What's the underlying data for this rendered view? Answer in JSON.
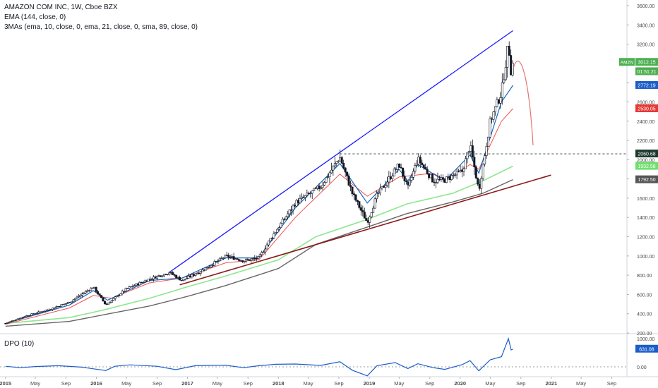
{
  "chart_data": [
    {
      "type": "candlestick",
      "title": "AMAZON COM INC, 1W, Cboe BZX",
      "indicators": [
        "EMA (144, close, 0)",
        "3MAs (ema, 10, close, 0, ema, 21, close, 0, sma, 89, close, 0)"
      ],
      "ylim": [
        200,
        3600
      ],
      "yticks": [
        "3600.00",
        "3400.00",
        "3200.00",
        "3000.00",
        "2800.00",
        "2600.00",
        "2400.00",
        "2200.00",
        "2000.00",
        "1800.00",
        "1600.00",
        "1400.00",
        "1200.00",
        "1000.00",
        "800.00",
        "600.00",
        "400.00",
        "200.00"
      ],
      "xticks": [
        "2015",
        "May",
        "Sep",
        "2016",
        "May",
        "Sep",
        "2017",
        "May",
        "Sep",
        "2018",
        "May",
        "Sep",
        "2019",
        "May",
        "Sep",
        "2020",
        "May",
        "Sep",
        "2021",
        "May",
        "Sep"
      ],
      "price_path": [
        [
          "2015-01-01",
          300
        ],
        [
          "2015-03-15",
          370
        ],
        [
          "2015-07-01",
          450
        ],
        [
          "2015-09-15",
          520
        ],
        [
          "2015-12-20",
          680
        ],
        [
          "2016-02-08",
          490
        ],
        [
          "2016-05-01",
          660
        ],
        [
          "2016-08-01",
          760
        ],
        [
          "2016-10-20",
          830
        ],
        [
          "2016-12-10",
          745
        ],
        [
          "2017-03-01",
          850
        ],
        [
          "2017-06-05",
          1000
        ],
        [
          "2017-08-15",
          950
        ],
        [
          "2017-10-15",
          980
        ],
        [
          "2017-12-01",
          1180
        ],
        [
          "2018-03-10",
          1550
        ],
        [
          "2018-06-20",
          1720
        ],
        [
          "2018-09-05",
          2030
        ],
        [
          "2018-10-25",
          1650
        ],
        [
          "2018-12-24",
          1350
        ],
        [
          "2019-02-01",
          1630
        ],
        [
          "2019-05-01",
          1950
        ],
        [
          "2019-06-05",
          1700
        ],
        [
          "2019-07-15",
          2010
        ],
        [
          "2019-09-15",
          1780
        ],
        [
          "2019-11-01",
          1790
        ],
        [
          "2020-01-10",
          1880
        ],
        [
          "2020-02-10",
          2150
        ],
        [
          "2020-03-16",
          1680
        ],
        [
          "2020-05-01",
          2400
        ],
        [
          "2020-06-15",
          2700
        ],
        [
          "2020-07-13",
          3200
        ],
        [
          "2020-07-24",
          2900
        ],
        [
          "2020-07-31",
          3012
        ]
      ],
      "ema10_path": [
        [
          "2015-01-01",
          300
        ],
        [
          "2015-09-15",
          490
        ],
        [
          "2015-12-20",
          640
        ],
        [
          "2016-02-15",
          540
        ],
        [
          "2016-08-01",
          745
        ],
        [
          "2016-12-10",
          770
        ],
        [
          "2017-06-05",
          980
        ],
        [
          "2017-10-15",
          980
        ],
        [
          "2018-03-10",
          1500
        ],
        [
          "2018-09-05",
          1960
        ],
        [
          "2018-12-24",
          1550
        ],
        [
          "2019-05-01",
          1900
        ],
        [
          "2019-06-05",
          1780
        ],
        [
          "2019-07-15",
          1950
        ],
        [
          "2019-11-01",
          1780
        ],
        [
          "2020-02-10",
          2050
        ],
        [
          "2020-03-16",
          1860
        ],
        [
          "2020-06-15",
          2600
        ],
        [
          "2020-07-31",
          2772
        ]
      ],
      "ema21_path": [
        [
          "2015-01-01",
          290
        ],
        [
          "2015-09-15",
          460
        ],
        [
          "2015-12-20",
          590
        ],
        [
          "2016-03-01",
          560
        ],
        [
          "2016-08-01",
          720
        ],
        [
          "2016-12-10",
          770
        ],
        [
          "2017-06-05",
          930
        ],
        [
          "2017-10-15",
          960
        ],
        [
          "2018-03-10",
          1400
        ],
        [
          "2018-09-05",
          1850
        ],
        [
          "2018-12-24",
          1620
        ],
        [
          "2019-05-01",
          1820
        ],
        [
          "2019-09-15",
          1860
        ],
        [
          "2019-11-01",
          1790
        ],
        [
          "2020-02-10",
          1950
        ],
        [
          "2020-03-16",
          1900
        ],
        [
          "2020-06-15",
          2400
        ],
        [
          "2020-07-31",
          2530
        ]
      ],
      "ema144_path": [
        [
          "2015-01-01",
          300
        ],
        [
          "2015-09-15",
          360
        ],
        [
          "2016-02-01",
          440
        ],
        [
          "2016-08-01",
          560
        ],
        [
          "2017-01-01",
          680
        ],
        [
          "2017-06-01",
          790
        ],
        [
          "2018-01-01",
          960
        ],
        [
          "2018-06-01",
          1200
        ],
        [
          "2018-12-24",
          1380
        ],
        [
          "2019-06-01",
          1540
        ],
        [
          "2019-12-01",
          1650
        ],
        [
          "2020-04-01",
          1780
        ],
        [
          "2020-07-31",
          1933
        ]
      ],
      "sma89_path": [
        [
          "2015-01-01",
          270
        ],
        [
          "2015-09-15",
          320
        ],
        [
          "2016-02-01",
          390
        ],
        [
          "2016-08-01",
          480
        ],
        [
          "2017-01-01",
          580
        ],
        [
          "2017-06-01",
          690
        ],
        [
          "2018-01-01",
          870
        ],
        [
          "2018-06-01",
          1120
        ],
        [
          "2018-12-24",
          1300
        ],
        [
          "2019-06-01",
          1440
        ],
        [
          "2019-12-01",
          1560
        ],
        [
          "2020-04-01",
          1650
        ],
        [
          "2020-07-31",
          1793
        ]
      ],
      "upper_trendline": [
        [
          "2016-10-20",
          830
        ],
        [
          "2020-07-31",
          3340
        ]
      ],
      "lower_trendline": [
        [
          "2016-12-01",
          700
        ],
        [
          "2020-12-31",
          1840
        ]
      ],
      "resistance_level": 2060.68,
      "projection_path": [
        [
          "2020-08-03",
          2960
        ],
        [
          "2020-08-25",
          3000
        ],
        [
          "2020-10-01",
          2650
        ],
        [
          "2020-10-20",
          2150
        ]
      ],
      "price_labels": [
        {
          "text": "3012.15",
          "value": 3012.15,
          "color": "#4caf50",
          "symbol": "AMZN"
        },
        {
          "text": "01:51:21",
          "value": 2915,
          "color": "#4caf50",
          "symbol": ""
        },
        {
          "text": "2772.19",
          "value": 2772.19,
          "color": "#1b5ec9",
          "symbol": ""
        },
        {
          "text": "2530.05",
          "value": 2530.05,
          "color": "#e53935",
          "symbol": ""
        },
        {
          "text": "2060.68",
          "value": 2060.68,
          "color": "#1b3a2e",
          "symbol": ""
        },
        {
          "text": "1932.58",
          "value": 1932.58,
          "color": "#6ee06e",
          "symbol": ""
        },
        {
          "text": "1792.50",
          "value": 1792.5,
          "color": "#555555",
          "symbol": ""
        }
      ]
    },
    {
      "type": "line",
      "title": "DPO (10)",
      "ylim": [
        -250,
        1150
      ],
      "yticks": [
        "1000.00",
        "0.00"
      ],
      "dpo_path": [
        [
          "2015-01-01",
          20
        ],
        [
          "2015-03-01",
          -30
        ],
        [
          "2015-05-01",
          10
        ],
        [
          "2015-08-01",
          40
        ],
        [
          "2015-11-01",
          -10
        ],
        [
          "2016-02-08",
          -130
        ],
        [
          "2016-03-15",
          20
        ],
        [
          "2016-05-15",
          70
        ],
        [
          "2016-09-01",
          20
        ],
        [
          "2016-11-15",
          -100
        ],
        [
          "2017-02-01",
          40
        ],
        [
          "2017-06-01",
          60
        ],
        [
          "2017-08-15",
          -30
        ],
        [
          "2017-10-15",
          40
        ],
        [
          "2017-12-20",
          90
        ],
        [
          "2018-03-10",
          100
        ],
        [
          "2018-06-20",
          50
        ],
        [
          "2018-09-05",
          180
        ],
        [
          "2018-10-25",
          -120
        ],
        [
          "2018-12-24",
          -320
        ],
        [
          "2019-02-01",
          40
        ],
        [
          "2019-04-15",
          150
        ],
        [
          "2019-06-05",
          -60
        ],
        [
          "2019-07-15",
          110
        ],
        [
          "2019-09-15",
          -30
        ],
        [
          "2019-11-01",
          -90
        ],
        [
          "2020-01-10",
          80
        ],
        [
          "2020-02-10",
          220
        ],
        [
          "2020-03-16",
          -140
        ],
        [
          "2020-05-01",
          250
        ],
        [
          "2020-06-15",
          360
        ],
        [
          "2020-07-13",
          1000
        ],
        [
          "2020-07-24",
          600
        ],
        [
          "2020-07-31",
          631
        ]
      ],
      "last_label": {
        "text": "631.08",
        "value": 631.08,
        "color": "#1b5ec9"
      }
    }
  ],
  "colors": {
    "up": "#26a69a",
    "down": "#131722",
    "candle": "#131722",
    "ema10": "#1565c0",
    "ema21": "#ef5350",
    "ema144": "#8ee68e",
    "sma89": "#666666",
    "upper_trend": "#1a1aff",
    "lower_trend": "#8b1a1a",
    "projection": "#e57373",
    "dpo": "#1b5ec9",
    "grid": "#f0f3fa",
    "axis_text": "#4a4a4a"
  }
}
